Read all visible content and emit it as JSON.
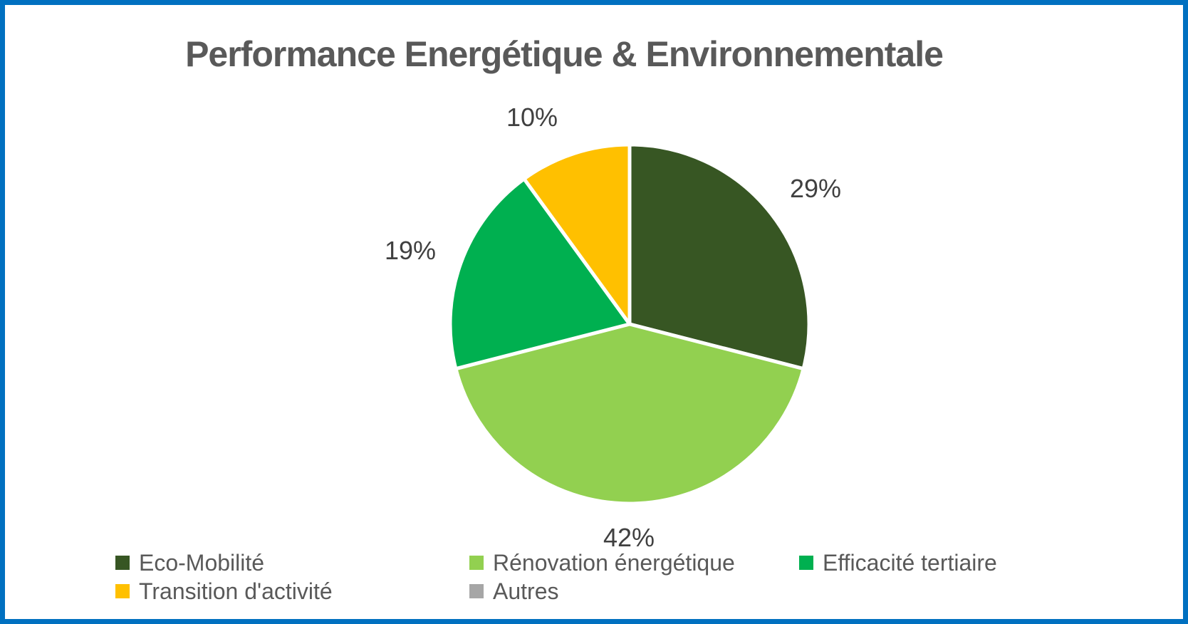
{
  "frame": {
    "border_color": "#0070C0",
    "background_color": "#FFFFFF"
  },
  "chart_data": {
    "type": "pie",
    "title": "Performance Energétique & Environnementale",
    "title_color": "#595959",
    "categories": [
      "Eco-Mobilité",
      "Rénovation énergétique",
      "Efficacité tertiaire",
      "Transition d'activité",
      "Autres"
    ],
    "values": [
      29,
      42,
      19,
      10,
      0
    ],
    "colors": [
      "#375623",
      "#92D050",
      "#00B050",
      "#FFC000",
      "#A6A6A6"
    ],
    "data_labels": [
      "29%",
      "42%",
      "19%",
      "10%"
    ],
    "data_label_color": "#404040",
    "start_angle_deg": 0,
    "direction": "clockwise",
    "slice_separator_color": "#FFFFFF",
    "legend_position": "bottom",
    "legend_text_color": "#595959"
  }
}
